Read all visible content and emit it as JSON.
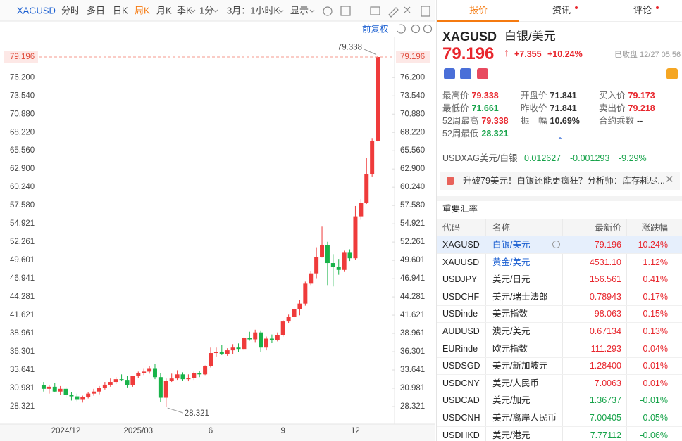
{
  "toolbar": {
    "symbol": "XAGUSD",
    "periods": [
      "分时",
      "多日",
      "日K",
      "周K",
      "月K",
      "季K"
    ],
    "interval": "1分",
    "range": "3月：1小时K",
    "display": "显示",
    "adjust": "前复权"
  },
  "chart_data": {
    "type": "candlestick",
    "categories": [
      null,
      null,
      null,
      null,
      "2024/12",
      null,
      null,
      null,
      null,
      null,
      null,
      null,
      null,
      null,
      null,
      null,
      null,
      "2025/03",
      null,
      null,
      null,
      null,
      null,
      null,
      null,
      null,
      null,
      null,
      null,
      null,
      "6",
      null,
      null,
      null,
      null,
      null,
      null,
      null,
      null,
      null,
      null,
      null,
      null,
      "9",
      null,
      null,
      null,
      null,
      null,
      null,
      null,
      null,
      null,
      null,
      null,
      null,
      "12",
      null,
      null,
      null,
      null
    ],
    "open": [
      31.4,
      30.9,
      31.2,
      30.5,
      30.9,
      30.0,
      29.8,
      29.4,
      29.7,
      30.2,
      30.5,
      31.0,
      31.5,
      31.9,
      32.3,
      32.2,
      31.4,
      32.8,
      33.2,
      33.4,
      33.9,
      32.6,
      29.6,
      32.1,
      32.4,
      33.0,
      32.3,
      32.5,
      33.2,
      33.0,
      34.2,
      36.1,
      36.3,
      36.0,
      36.5,
      36.9,
      36.7,
      38.3,
      38.1,
      39.1,
      36.9,
      38.2,
      38.0,
      38.7,
      40.7,
      41.4,
      42.5,
      43.3,
      46.2,
      47.7,
      50.1,
      51.8,
      49.2,
      48.6,
      48.2,
      50.8,
      49.9,
      56.0,
      58.0,
      62.1,
      67.0
    ],
    "high": [
      31.9,
      31.5,
      31.8,
      31.3,
      31.2,
      30.4,
      30.2,
      29.9,
      30.4,
      30.9,
      31.3,
      31.9,
      32.4,
      32.6,
      33.0,
      32.8,
      32.5,
      33.4,
      33.9,
      34.2,
      34.5,
      33.2,
      32.4,
      33.1,
      33.6,
      33.3,
      33.0,
      33.4,
      33.5,
      34.3,
      36.9,
      36.9,
      37.3,
      36.8,
      37.4,
      37.5,
      38.4,
      39.2,
      39.5,
      39.4,
      38.5,
      38.8,
      39.1,
      40.9,
      41.7,
      42.8,
      43.8,
      46.5,
      48.0,
      51.5,
      54.5,
      52.3,
      50.5,
      49.8,
      51.0,
      51.2,
      57.5,
      58.5,
      64.5,
      67.4,
      79.338
    ],
    "low": [
      30.5,
      30.2,
      30.4,
      30.0,
      29.6,
      29.2,
      29.1,
      28.9,
      29.5,
      29.9,
      30.1,
      30.8,
      31.2,
      31.6,
      32.0,
      31.1,
      31.2,
      32.5,
      32.9,
      33.1,
      32.3,
      29.0,
      28.321,
      31.9,
      32.2,
      32.1,
      32.0,
      32.2,
      32.6,
      32.9,
      34.0,
      35.6,
      35.8,
      35.7,
      35.9,
      36.3,
      36.5,
      37.9,
      37.7,
      36.3,
      36.5,
      37.6,
      37.8,
      38.5,
      40.5,
      41.1,
      41.6,
      43.0,
      46.0,
      47.0,
      50.0,
      46.0,
      45.8,
      47.5,
      47.9,
      49.5,
      49.7,
      55.5,
      57.8,
      61.8,
      66.9
    ],
    "close": [
      30.9,
      31.2,
      30.5,
      30.9,
      30.0,
      29.8,
      29.4,
      29.7,
      30.2,
      30.5,
      31.0,
      31.5,
      31.9,
      32.3,
      32.2,
      31.4,
      32.8,
      33.2,
      33.4,
      33.9,
      32.6,
      29.6,
      32.1,
      32.4,
      33.0,
      32.3,
      32.5,
      33.2,
      33.0,
      34.2,
      36.1,
      36.3,
      36.0,
      36.5,
      36.9,
      36.7,
      38.3,
      38.1,
      39.1,
      36.9,
      38.2,
      38.0,
      38.7,
      40.7,
      41.4,
      42.5,
      43.3,
      46.2,
      47.7,
      50.1,
      51.8,
      49.2,
      48.6,
      48.2,
      50.8,
      49.9,
      56.0,
      58.0,
      62.1,
      67.0,
      79.196
    ],
    "ylim": [
      26.07,
      81.55
    ],
    "yticks": [
      {
        "value": 76.2,
        "label": "76.200"
      },
      {
        "value": 73.54,
        "label": "73.540"
      },
      {
        "value": 70.88,
        "label": "70.880"
      },
      {
        "value": 68.22,
        "label": "68.220"
      },
      {
        "value": 65.56,
        "label": "65.560"
      },
      {
        "value": 62.9,
        "label": "62.900"
      },
      {
        "value": 60.24,
        "label": "60.240"
      },
      {
        "value": 57.58,
        "label": "57.580"
      },
      54.921,
      52.261,
      49.601,
      46.941,
      44.281,
      41.621,
      38.961,
      36.301,
      33.641,
      30.981,
      28.321
    ],
    "grid": false,
    "up_color": "#ef3b3b",
    "down_color": "#19b34a",
    "price_line_color": "#f59a8c"
  },
  "panel": {
    "tabs": [
      "报价",
      "资讯",
      "评论"
    ],
    "quote": {
      "symbol": "XAGUSD",
      "name": "白银/美元",
      "price": "79.196",
      "change": "+7.355",
      "change_pct": "+10.24%",
      "status": "已收盘 12/27 05:56"
    },
    "stats": [
      {
        "label": "最高价",
        "value": "79.338",
        "color": "#e8262d"
      },
      {
        "label": "开盘价",
        "value": "71.841",
        "color": "#333333"
      },
      {
        "label": "买入价",
        "value": "79.173",
        "color": "#e8262d"
      },
      {
        "label": "最低价",
        "value": "71.661",
        "color": "#17a34a"
      },
      {
        "label": "昨收价",
        "value": "71.841",
        "color": "#333333"
      },
      {
        "label": "卖出价",
        "value": "79.218",
        "color": "#e8262d"
      },
      {
        "label": "52周最高",
        "value": "79.338",
        "color": "#e8262d"
      },
      {
        "label": "振　幅",
        "value": "10.69%",
        "color": "#333333"
      },
      {
        "label": "合约乘数",
        "value": "--",
        "color": "#333333"
      },
      {
        "label": "52周最低",
        "value": "28.321",
        "color": "#17a34a"
      }
    ],
    "cross": {
      "code": "USDXAG",
      "name": "美元/白银",
      "price": "0.012627",
      "change": "-0.001293",
      "pct": "-9.29%"
    },
    "news": "升破79美元！白银还能更疯狂？分析师：库存耗尽...",
    "rates": {
      "title": "重要汇率",
      "columns": [
        "代码",
        "名称",
        "最新价",
        "涨跌幅"
      ],
      "rows": [
        [
          "XAGUSD",
          "白银/美元",
          "79.196",
          "10.24%"
        ],
        [
          "XAUUSD",
          "黄金/美元",
          "4531.10",
          "1.12%"
        ],
        [
          "USDJPY",
          "美元/日元",
          "156.561",
          "0.41%"
        ],
        [
          "USDCHF",
          "美元/瑞士法郎",
          "0.78943",
          "0.17%"
        ],
        [
          "USDinde",
          "美元指数",
          "98.063",
          "0.15%"
        ],
        [
          "AUDUSD",
          "澳元/美元",
          "0.67134",
          "0.13%"
        ],
        [
          "EURinde",
          "欧元指数",
          "111.293",
          "0.04%"
        ],
        [
          "USDSGD",
          "美元/新加坡元",
          "1.28400",
          "0.01%"
        ],
        [
          "USDCNY",
          "美元/人民币",
          "7.0063",
          "0.01%"
        ],
        [
          "USDCAD",
          "美元/加元",
          "1.36737",
          "-0.01%"
        ],
        [
          "USDCNH",
          "美元/离岸人民币",
          "7.00405",
          "-0.05%"
        ],
        [
          "USDHKD",
          "美元/港元",
          "7.77112",
          "-0.06%"
        ]
      ]
    }
  }
}
